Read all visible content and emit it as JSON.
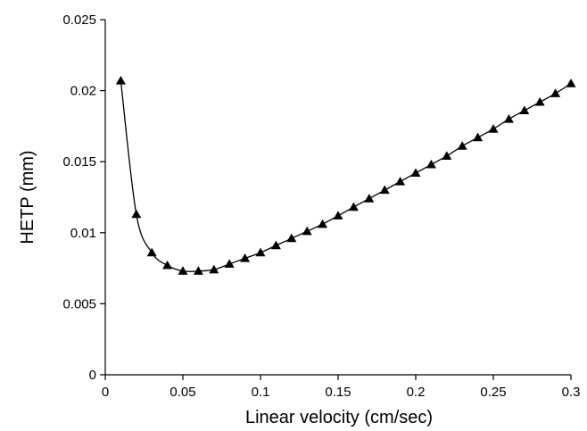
{
  "chart_data": {
    "type": "line",
    "title": "",
    "xlabel": "Linear velocity (cm/sec)",
    "ylabel": "HETP (mm)",
    "xlim": [
      0,
      0.3
    ],
    "ylim": [
      0,
      0.025
    ],
    "x_ticks": [
      0,
      0.05,
      0.1,
      0.15,
      0.2,
      0.25,
      0.3
    ],
    "x_tick_labels": [
      "0",
      "0.05",
      "0.1",
      "0.15",
      "0.2",
      "0.25",
      "0.3"
    ],
    "y_ticks": [
      0,
      0.005,
      0.01,
      0.015,
      0.02,
      0.025
    ],
    "y_tick_labels": [
      "0",
      "0.005",
      "0.01",
      "0.015",
      "0.02",
      "0.025"
    ],
    "grid": false,
    "legend": "none",
    "marker": "triangle",
    "color": "#000000",
    "series": [
      {
        "x": [
          0.01,
          0.02,
          0.03,
          0.04,
          0.05,
          0.06,
          0.07,
          0.08,
          0.09,
          0.1,
          0.11,
          0.12,
          0.13,
          0.14,
          0.15,
          0.16,
          0.17,
          0.18,
          0.19,
          0.2,
          0.21,
          0.22,
          0.23,
          0.24,
          0.25,
          0.26,
          0.27,
          0.28,
          0.29,
          0.3
        ],
        "y": [
          0.0207,
          0.0113,
          0.0086,
          0.0077,
          0.0073,
          0.0073,
          0.0074,
          0.0078,
          0.0082,
          0.0086,
          0.0091,
          0.0096,
          0.0101,
          0.0106,
          0.0112,
          0.0118,
          0.0124,
          0.013,
          0.0136,
          0.0142,
          0.0148,
          0.0154,
          0.0161,
          0.0167,
          0.0173,
          0.018,
          0.0186,
          0.0192,
          0.0198,
          0.0205
        ]
      }
    ]
  }
}
